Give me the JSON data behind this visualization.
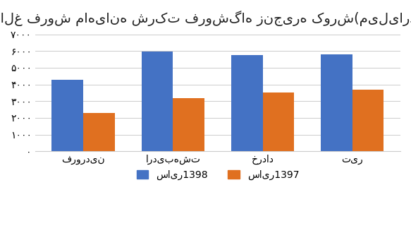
{
  "title": "مبالغ فروش ماهیانه شرکت فروشگاه زنجیره کورش(میلیارد ریال)",
  "categories": [
    "فروردین",
    "اردیبهشت",
    "خرداد",
    "تیر"
  ],
  "series_1398": [
    4300,
    5950,
    5750,
    5800
  ],
  "series_1397": [
    2300,
    3200,
    3500,
    3700
  ],
  "color_1398": "#4472C4",
  "color_1397": "#E07020",
  "legend_1398": "سایر1398",
  "legend_1397": "سایر1397",
  "ylim": [
    0,
    7000
  ],
  "yticks": [
    0,
    1000,
    2000,
    3000,
    4000,
    5000,
    6000,
    7000
  ],
  "ytick_labels": [
    "۰",
    "۱۰۰۰",
    "۲۰۰۰",
    "۳۰۰۰",
    "۴۰۰۰",
    "۵۰۰۰",
    "۶۰۰۰",
    "۷۰۰۰"
  ],
  "bar_width": 0.35,
  "background_color": "#ffffff",
  "title_fontsize": 14,
  "tick_fontsize": 10,
  "legend_fontsize": 10
}
